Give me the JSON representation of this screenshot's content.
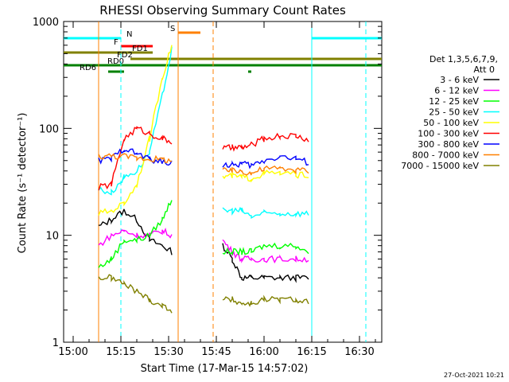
{
  "chart_data": {
    "type": "line",
    "title": "RHESSI Observing Summary Count Rates",
    "xlabel": "Start Time (17-Mar-15 14:57:02)",
    "ylabel": "Count Rate (s⁻¹ detector⁻¹)",
    "y_scale": "log",
    "ylim": [
      1,
      1000
    ],
    "xlim": [
      "14:57",
      "16:37"
    ],
    "x_ticks": [
      "15:00",
      "15:15",
      "15:30",
      "15:45",
      "16:00",
      "16:15",
      "16:30"
    ],
    "y_ticks": [
      "1",
      "10",
      "100",
      "1000"
    ],
    "timestamp": "27-Oct-2021 10:21",
    "legend": {
      "header1": "Det 1,3,5,6,7,9,",
      "header2": "Att 0",
      "position": "right"
    },
    "series": [
      {
        "name": "3 - 6 keV",
        "color": "#000000",
        "x": [
          "15:08",
          "15:12",
          "15:16",
          "15:20",
          "15:24",
          "15:28",
          "15:31",
          "15:47",
          "15:50",
          "15:53",
          "15:56",
          "16:00",
          "16:05",
          "16:10",
          "16:14"
        ],
        "y": [
          12,
          14,
          17,
          14,
          9,
          8,
          7,
          8,
          6,
          4,
          4,
          4,
          4,
          4,
          4
        ]
      },
      {
        "name": "6 - 12 keV",
        "color": "#ff00ff",
        "x": [
          "15:08",
          "15:12",
          "15:16",
          "15:20",
          "15:24",
          "15:28",
          "15:31",
          "15:47",
          "15:50",
          "15:53",
          "15:56",
          "16:00",
          "16:05",
          "16:10",
          "16:14"
        ],
        "y": [
          8,
          10,
          11,
          10,
          10,
          11,
          10,
          9,
          7,
          6,
          6,
          6,
          6,
          6,
          6
        ]
      },
      {
        "name": "12 - 25 keV",
        "color": "#00ff00",
        "x": [
          "15:08",
          "15:12",
          "15:16",
          "15:20",
          "15:24",
          "15:28",
          "15:31",
          "15:47",
          "15:50",
          "15:53",
          "15:56",
          "16:00",
          "16:05",
          "16:10",
          "16:14"
        ],
        "y": [
          5,
          6,
          9,
          9,
          10,
          14,
          22,
          7,
          7,
          7,
          7,
          8,
          8,
          8,
          7
        ]
      },
      {
        "name": "25 - 50 keV",
        "color": "#00ffff",
        "x": [
          "15:08",
          "15:12",
          "15:16",
          "15:20",
          "15:24",
          "15:28",
          "15:31",
          "15:47",
          "15:50",
          "15:53",
          "15:56",
          "16:00",
          "16:05",
          "16:10",
          "16:14"
        ],
        "y": [
          27,
          25,
          35,
          40,
          60,
          200,
          550,
          17,
          17,
          17,
          15,
          16,
          16,
          16,
          16
        ]
      },
      {
        "name": "50 - 100 keV",
        "color": "#ffff00",
        "x": [
          "15:08",
          "15:12",
          "15:16",
          "15:20",
          "15:24",
          "15:28",
          "15:31",
          "15:47",
          "15:50",
          "15:53",
          "15:56",
          "16:00",
          "16:05",
          "16:10",
          "16:14"
        ],
        "y": [
          16,
          17,
          20,
          30,
          80,
          300,
          600,
          35,
          36,
          35,
          34,
          38,
          38,
          37,
          36
        ]
      },
      {
        "name": "100 - 300 keV",
        "color": "#ff0000",
        "x": [
          "15:08",
          "15:12",
          "15:16",
          "15:20",
          "15:24",
          "15:28",
          "15:31",
          "15:47",
          "15:50",
          "15:53",
          "15:56",
          "16:00",
          "16:05",
          "16:10",
          "16:14"
        ],
        "y": [
          28,
          30,
          80,
          100,
          90,
          80,
          75,
          65,
          66,
          66,
          70,
          80,
          85,
          85,
          78
        ]
      },
      {
        "name": "300 - 800 keV",
        "color": "#0000ff",
        "x": [
          "15:08",
          "15:12",
          "15:16",
          "15:20",
          "15:24",
          "15:28",
          "15:31",
          "15:47",
          "15:50",
          "15:53",
          "15:56",
          "16:00",
          "16:05",
          "16:10",
          "16:14"
        ],
        "y": [
          50,
          52,
          65,
          58,
          52,
          48,
          48,
          46,
          45,
          47,
          45,
          50,
          55,
          52,
          48
        ]
      },
      {
        "name": "800 - 7000 keV",
        "color": "#ff8000",
        "x": [
          "15:08",
          "15:12",
          "15:16",
          "15:20",
          "15:24",
          "15:28",
          "15:31",
          "15:47",
          "15:50",
          "15:53",
          "15:56",
          "16:00",
          "16:05",
          "16:10",
          "16:14"
        ],
        "y": [
          55,
          55,
          55,
          53,
          52,
          51,
          50,
          40,
          40,
          40,
          38,
          42,
          42,
          41,
          40
        ]
      },
      {
        "name": "7000 - 15000 keV",
        "color": "#808000",
        "x": [
          "15:08",
          "15:12",
          "15:16",
          "15:20",
          "15:24",
          "15:28",
          "15:31",
          "15:47",
          "15:50",
          "15:53",
          "15:56",
          "16:00",
          "16:05",
          "16:10",
          "16:14"
        ],
        "y": [
          4,
          4,
          3.5,
          3,
          2.5,
          2.2,
          2,
          2.5,
          2.5,
          2.3,
          2.3,
          2.5,
          2.5,
          2.5,
          2.4
        ]
      }
    ],
    "flag_bars": [
      {
        "label": "N",
        "color": "#00ffff",
        "segments": [
          [
            "14:57",
            "15:15"
          ],
          [
            "16:15",
            "16:37"
          ]
        ]
      },
      {
        "label": "S",
        "color": "#ff8000",
        "segments": [
          [
            "15:33",
            "15:40"
          ]
        ]
      },
      {
        "label": "F",
        "color": "#ff0000",
        "segments": [
          [
            "15:15",
            "15:25"
          ]
        ]
      },
      {
        "label": "FD1",
        "color": "#808000",
        "segments": [
          [
            "14:57",
            "15:25"
          ]
        ]
      },
      {
        "label": "FD2",
        "color": "#808000",
        "segments": [
          [
            "15:18",
            "16:37"
          ]
        ]
      },
      {
        "label": "RD0",
        "color": "#008000",
        "segments": [
          [
            "14:57",
            "16:37"
          ]
        ]
      },
      {
        "label": "RD6",
        "color": "#008000",
        "segments": [
          [
            "15:11",
            "15:16"
          ],
          [
            "15:55",
            "15:56"
          ]
        ]
      }
    ],
    "vlines_solid": [
      {
        "t": "15:08",
        "color": "#ff8000"
      },
      {
        "t": "15:33",
        "color": "#ff8000"
      },
      {
        "t": "16:15",
        "color": "#00ffff"
      }
    ],
    "vlines_dashed": [
      {
        "t": "15:15",
        "color": "#00ffff"
      },
      {
        "t": "15:44",
        "color": "#ff8000"
      },
      {
        "t": "16:32",
        "color": "#00ffff"
      }
    ]
  }
}
